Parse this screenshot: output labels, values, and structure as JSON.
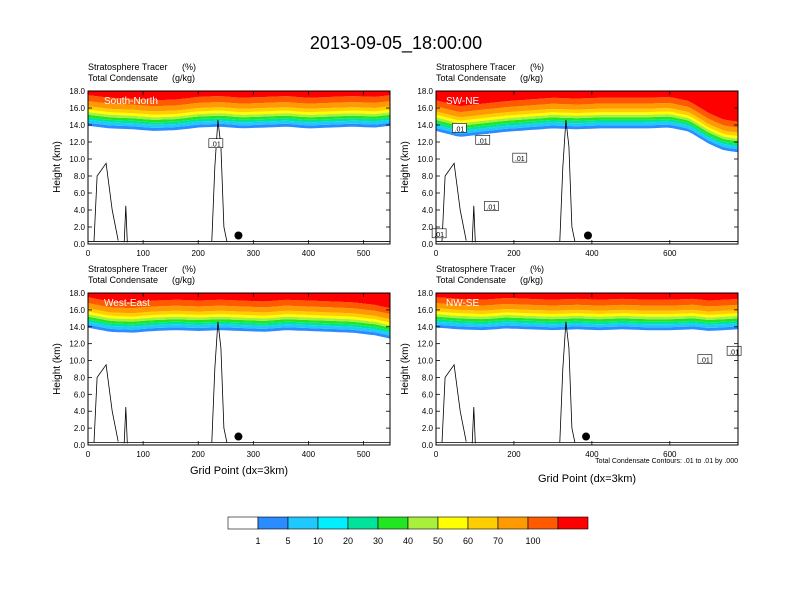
{
  "page_title": "2013-09-05_18:00:00",
  "colors": {
    "contour_levels": [
      "#ffffff",
      "#2a8cff",
      "#1fc8ff",
      "#00f0ff",
      "#00e39a",
      "#22e622",
      "#a8f03c",
      "#ffff00",
      "#ffce00",
      "#ff9a00",
      "#ff5a00",
      "#ff0000"
    ],
    "line": "#000000",
    "background": "#ffffff"
  },
  "colorbar": {
    "labels": [
      "1",
      "5",
      "10",
      "20",
      "30",
      "40",
      "50",
      "60",
      "70",
      "100"
    ]
  },
  "footer_note": "Total Condensate Contours: .01 to .01 by .000",
  "chart_data": [
    {
      "type": "heatmap",
      "panel": "South-North",
      "title": "South-North",
      "left_title_1": "Stratosphere Tracer",
      "left_title_2": "Total Condensate",
      "right_title_1": "(%)",
      "right_title_2": "(g/kg)",
      "ylabel": "Height (km)",
      "xlabel": "",
      "xlim": [
        0,
        548
      ],
      "ylim": [
        0,
        18
      ],
      "xticks": [
        0,
        100,
        200,
        300,
        400,
        500
      ],
      "yticks": [
        "0.0",
        "2.0",
        "4.0",
        "6.0",
        "8.0",
        "10.0",
        "12.0",
        "14.0",
        "16.0",
        "18.0"
      ],
      "tropopause_km": [
        [
          0,
          13.9
        ],
        [
          40,
          13.6
        ],
        [
          80,
          13.5
        ],
        [
          120,
          13.3
        ],
        [
          160,
          13.4
        ],
        [
          200,
          13.7
        ],
        [
          240,
          13.8
        ],
        [
          280,
          13.6
        ],
        [
          320,
          13.7
        ],
        [
          360,
          13.8
        ],
        [
          400,
          13.6
        ],
        [
          440,
          13.7
        ],
        [
          480,
          13.8
        ],
        [
          520,
          13.7
        ],
        [
          548,
          13.9
        ]
      ],
      "marker": {
        "x": 273,
        "y": 1.0
      },
      "contour_labels": [
        {
          "text": ".01",
          "x": 232,
          "y": 11.8
        }
      ]
    },
    {
      "type": "heatmap",
      "panel": "SW-NE",
      "title": "SW-NE",
      "left_title_1": "Stratosphere Tracer",
      "left_title_2": "Total Condensate",
      "right_title_1": "(%)",
      "right_title_2": "(g/kg)",
      "ylabel": "Height (km)",
      "xlabel": "",
      "xlim": [
        0,
        775
      ],
      "ylim": [
        0,
        18
      ],
      "xticks": [
        0,
        200,
        400,
        600
      ],
      "yticks": [
        "0.0",
        "2.0",
        "4.0",
        "6.0",
        "8.0",
        "10.0",
        "12.0",
        "14.0",
        "16.0",
        "18.0"
      ],
      "tropopause_km": [
        [
          0,
          13.3
        ],
        [
          60,
          12.6
        ],
        [
          120,
          12.9
        ],
        [
          180,
          13.2
        ],
        [
          240,
          13.4
        ],
        [
          300,
          13.6
        ],
        [
          360,
          13.5
        ],
        [
          420,
          13.6
        ],
        [
          480,
          13.6
        ],
        [
          540,
          13.6
        ],
        [
          600,
          13.7
        ],
        [
          650,
          13.2
        ],
        [
          700,
          11.8
        ],
        [
          740,
          11.0
        ],
        [
          775,
          10.8
        ]
      ],
      "marker": {
        "x": 390,
        "y": 1.0
      },
      "contour_labels": [
        {
          "text": ".01",
          "x": 60,
          "y": 13.6
        },
        {
          "text": ".01",
          "x": 120,
          "y": 12.2
        },
        {
          "text": ".01",
          "x": 215,
          "y": 10.1
        },
        {
          "text": ".01",
          "x": 142,
          "y": 4.4
        },
        {
          "text": ".01",
          "x": 8,
          "y": 1.2
        }
      ]
    },
    {
      "type": "heatmap",
      "panel": "West-East",
      "title": "West-East",
      "left_title_1": "Stratosphere Tracer",
      "left_title_2": "Total Condensate",
      "right_title_1": "(%)",
      "right_title_2": "(g/kg)",
      "ylabel": "Height (km)",
      "xlabel": "Grid Point (dx=3km)",
      "xlim": [
        0,
        548
      ],
      "ylim": [
        0,
        18
      ],
      "xticks": [
        0,
        100,
        200,
        300,
        400,
        500
      ],
      "yticks": [
        "0.0",
        "2.0",
        "4.0",
        "6.0",
        "8.0",
        "10.0",
        "12.0",
        "14.0",
        "16.0",
        "18.0"
      ],
      "tropopause_km": [
        [
          0,
          13.9
        ],
        [
          40,
          13.4
        ],
        [
          80,
          13.3
        ],
        [
          120,
          13.5
        ],
        [
          160,
          13.6
        ],
        [
          200,
          13.5
        ],
        [
          240,
          13.6
        ],
        [
          280,
          13.5
        ],
        [
          320,
          13.4
        ],
        [
          360,
          13.6
        ],
        [
          400,
          13.5
        ],
        [
          440,
          13.4
        ],
        [
          480,
          13.3
        ],
        [
          520,
          13.0
        ],
        [
          548,
          12.6
        ]
      ],
      "marker": {
        "x": 273,
        "y": 1.0
      },
      "contour_labels": []
    },
    {
      "type": "heatmap",
      "panel": "NW-SE",
      "title": "NW-SE",
      "left_title_1": "Stratosphere Tracer",
      "left_title_2": "Total Condensate",
      "right_title_1": "(%)",
      "right_title_2": "(g/kg)",
      "ylabel": "Height (km)",
      "xlabel": "Grid Point (dx=3km)",
      "xlim": [
        0,
        775
      ],
      "ylim": [
        0,
        18
      ],
      "xticks": [
        0,
        200,
        400,
        600
      ],
      "yticks": [
        "0.0",
        "2.0",
        "4.0",
        "6.0",
        "8.0",
        "10.0",
        "12.0",
        "14.0",
        "16.0",
        "18.0"
      ],
      "tropopause_km": [
        [
          0,
          13.9
        ],
        [
          60,
          13.7
        ],
        [
          120,
          13.6
        ],
        [
          180,
          13.8
        ],
        [
          240,
          13.7
        ],
        [
          300,
          13.6
        ],
        [
          360,
          13.7
        ],
        [
          420,
          13.6
        ],
        [
          480,
          13.7
        ],
        [
          540,
          13.6
        ],
        [
          600,
          13.6
        ],
        [
          660,
          13.7
        ],
        [
          700,
          13.5
        ],
        [
          740,
          13.6
        ],
        [
          775,
          13.7
        ]
      ],
      "marker": {
        "x": 385,
        "y": 1.0
      },
      "contour_labels": [
        {
          "text": ".01",
          "x": 765,
          "y": 11.1
        },
        {
          "text": ".01",
          "x": 690,
          "y": 10.1
        }
      ]
    }
  ]
}
